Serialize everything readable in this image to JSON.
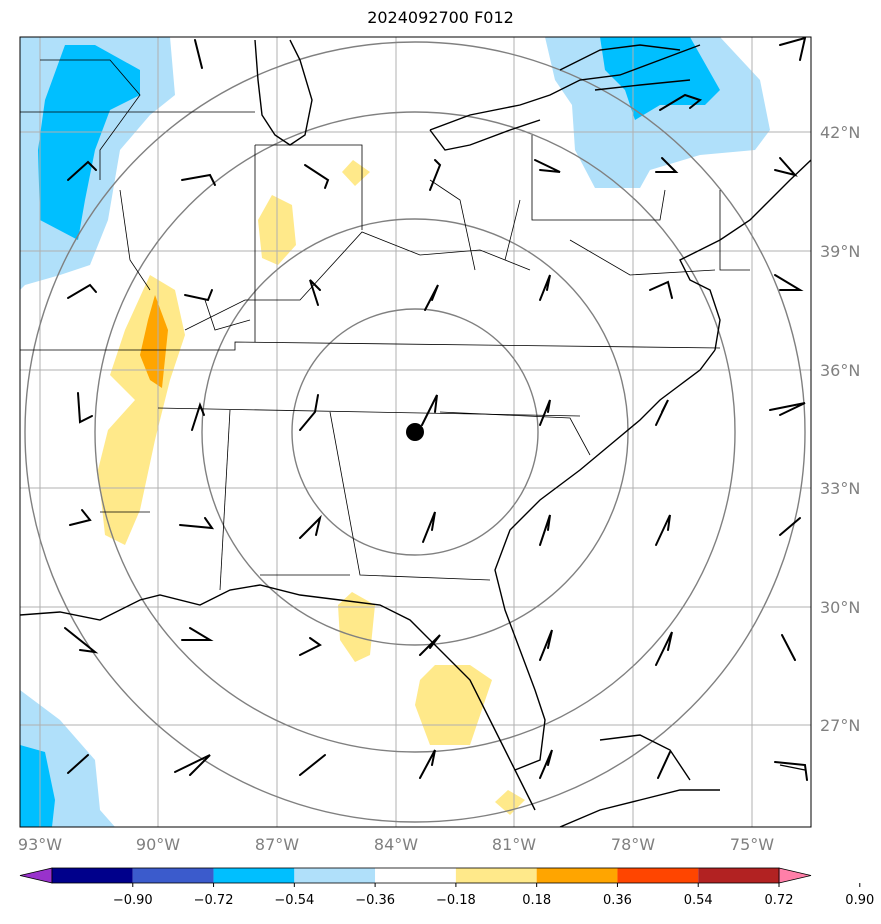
{
  "map": {
    "title": "2024092700 F012",
    "lat_labels": [
      "42°N",
      "39°N",
      "36°N",
      "33°N",
      "30°N",
      "27°N"
    ],
    "lon_labels": [
      "93°W",
      "90°W",
      "87°W",
      "84°W",
      "81°W",
      "78°W",
      "75°W"
    ],
    "center_marker": "point-marker"
  },
  "colorbar": {
    "ticks": [
      "−0.90",
      "−0.72",
      "−0.54",
      "−0.36",
      "−0.18",
      "0.18",
      "0.36",
      "0.54",
      "0.72",
      "0.90"
    ],
    "colors": [
      "#9932cc",
      "#00008b",
      "#3b5bcc",
      "#00bfff",
      "#b0e0fa",
      "#ffffff",
      "#ffe98a",
      "#ffa500",
      "#ff4500",
      "#b22222",
      "#ff7fa8"
    ]
  }
}
